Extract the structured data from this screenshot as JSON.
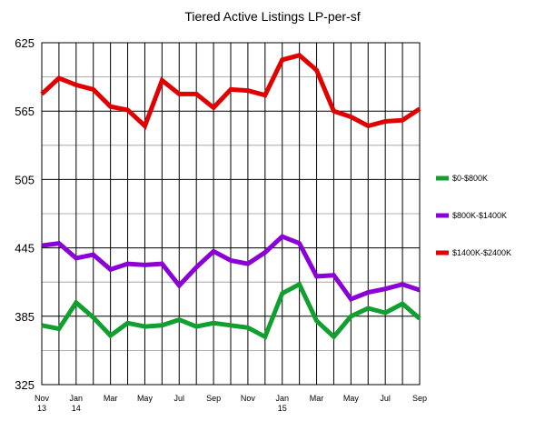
{
  "chart_data": {
    "type": "line",
    "title": "Tiered Active Listings LP-per-sf",
    "ylim": [
      325,
      625
    ],
    "yticks": [
      "325",
      "385",
      "445",
      "505",
      "565",
      "625"
    ],
    "x_tick_labels": [
      [
        "Nov",
        "13"
      ],
      [
        "",
        ""
      ],
      [
        "Jan",
        "14"
      ],
      [
        "",
        ""
      ],
      [
        "Mar",
        ""
      ],
      [
        "",
        ""
      ],
      [
        "May",
        ""
      ],
      [
        "",
        ""
      ],
      [
        "Jul",
        ""
      ],
      [
        "",
        ""
      ],
      [
        "Sep",
        ""
      ],
      [
        "",
        ""
      ],
      [
        "Nov",
        ""
      ],
      [
        "",
        ""
      ],
      [
        "Jan",
        "15"
      ],
      [
        "",
        ""
      ],
      [
        "Mar",
        ""
      ],
      [
        "",
        ""
      ],
      [
        "May",
        ""
      ],
      [
        "",
        ""
      ],
      [
        "Jul",
        ""
      ],
      [
        "",
        ""
      ],
      [
        "Sep",
        ""
      ]
    ],
    "grid": true,
    "legend_position": "right",
    "series": [
      {
        "name": "$0-$800K",
        "color": "#11a030",
        "values": [
          377,
          374,
          397,
          384,
          368,
          379,
          376,
          377,
          382,
          376,
          379,
          377,
          375,
          367,
          405,
          413,
          381,
          367,
          385,
          392,
          388,
          396,
          383
        ]
      },
      {
        "name": "$800K-$1400K",
        "color": "#8b00d6",
        "values": [
          447,
          449,
          436,
          439,
          426,
          431,
          430,
          431,
          412,
          428,
          442,
          434,
          431,
          441,
          455,
          449,
          420,
          421,
          400,
          406,
          409,
          413,
          408
        ]
      },
      {
        "name": "$1400K-$2400K",
        "color": "#e00000",
        "values": [
          580,
          594,
          588,
          584,
          569,
          566,
          552,
          592,
          580,
          580,
          568,
          584,
          583,
          579,
          610,
          614,
          601,
          565,
          560,
          552,
          556,
          557,
          567
        ]
      }
    ]
  }
}
